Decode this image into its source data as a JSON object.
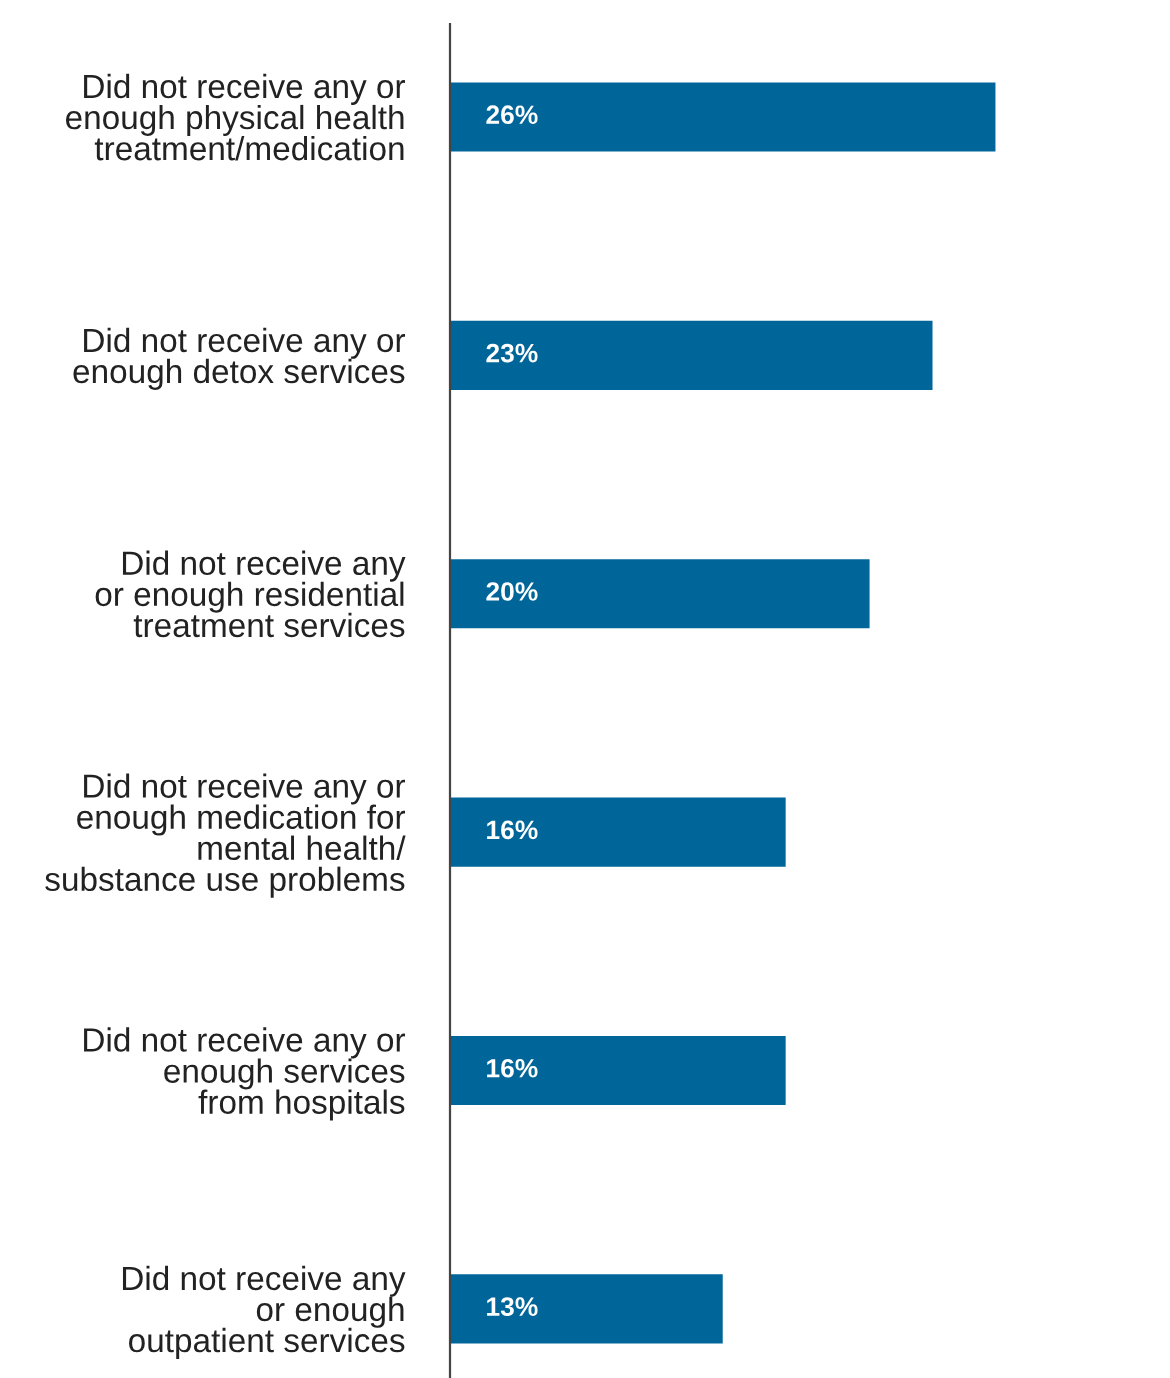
{
  "chart_data": {
    "type": "bar",
    "orientation": "horizontal",
    "categories": [
      "Did not receive any or\nenough physical health\ntreatment/medication",
      "Did not receive any or\nenough detox services",
      "Did not receive any\nor enough residential\ntreatment services",
      "Did not receive any or\nenough medication for\nmental health/\nsubstance use problems",
      "Did not receive any or\nenough services\nfrom hospitals",
      "Did not receive any\nor enough\noutpatient services"
    ],
    "values": [
      26,
      23,
      20,
      16,
      16,
      13
    ],
    "value_labels": [
      "26%",
      "23%",
      "20%",
      "16%",
      "16%",
      "13%"
    ],
    "color": "#00669a",
    "tick_labels": "y",
    "grid": false,
    "legend": false
  }
}
